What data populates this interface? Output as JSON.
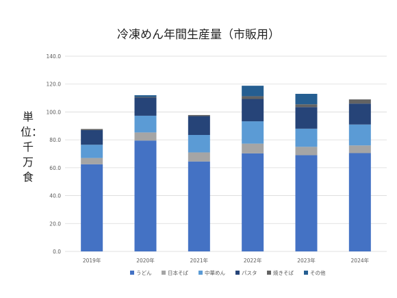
{
  "chart_data": {
    "type": "bar",
    "stacked": true,
    "title": "冷凍めん年間生産量（市販用）",
    "ylabel": "単位：千万食",
    "categories": [
      "2019年",
      "2020年",
      "2021年",
      "2022年",
      "2023年",
      "2024年"
    ],
    "ylim": [
      0,
      140
    ],
    "yticks": [
      "0.0",
      "20.0",
      "40.0",
      "60.0",
      "80.0",
      "100.0",
      "120.0",
      "140.0"
    ],
    "grid": true,
    "legend_position": "bottom",
    "series": [
      {
        "name": "うどん",
        "color": "#4472c4",
        "values": [
          62.5,
          79.5,
          64.5,
          70.3,
          69.0,
          70.5
        ]
      },
      {
        "name": "日本そば",
        "color": "#a5a5a5",
        "values": [
          4.5,
          5.8,
          6.5,
          7.0,
          6.0,
          5.5
        ]
      },
      {
        "name": "中華めん",
        "color": "#5b9bd5",
        "values": [
          9.5,
          12.0,
          12.5,
          16.0,
          13.0,
          15.0
        ]
      },
      {
        "name": "パスタ",
        "color": "#264478",
        "values": [
          10.5,
          13.0,
          13.5,
          16.0,
          15.5,
          15.0
        ]
      },
      {
        "name": "焼きそば",
        "color": "#636363",
        "values": [
          0.8,
          0.5,
          0.8,
          2.0,
          2.0,
          3.0
        ]
      },
      {
        "name": "その他",
        "color": "#255e91",
        "values": [
          0.0,
          1.2,
          0.0,
          7.5,
          7.5,
          0.0
        ]
      }
    ]
  }
}
